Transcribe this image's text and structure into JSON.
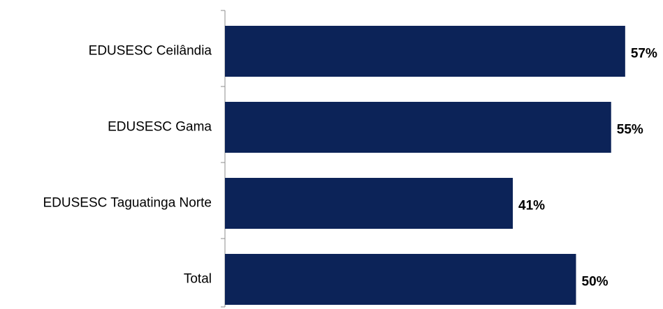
{
  "chart_data": {
    "type": "barh",
    "categories": [
      "EDUSESC Ceilândia",
      "EDUSESC Gama",
      "EDUSESC Taguatinga Norte",
      "Total"
    ],
    "values": [
      57,
      55,
      41,
      50
    ],
    "value_labels": [
      "57%",
      "55%",
      "41%",
      "50%"
    ],
    "color": "#0c2358"
  }
}
